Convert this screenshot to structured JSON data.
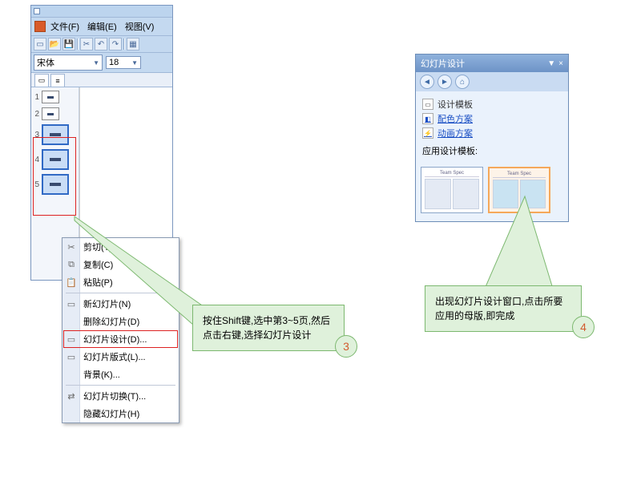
{
  "colors": {
    "accent": "#7a96bf",
    "highlight": "#d22",
    "callout_bg": "#dff1db",
    "callout_border": "#7cb86f",
    "badge_text": "#d25b2e"
  },
  "menu": {
    "file": "文件(F)",
    "edit": "编辑(E)",
    "view": "视图(V)"
  },
  "font": {
    "name": "宋体",
    "size": "18"
  },
  "thumbs": [
    {
      "n": "1"
    },
    {
      "n": "2"
    },
    {
      "n": "3"
    },
    {
      "n": "4"
    },
    {
      "n": "5"
    }
  ],
  "ctx": [
    {
      "icon": "✂",
      "label": "剪切(T)"
    },
    {
      "icon": "⧉",
      "label": "复制(C)"
    },
    {
      "icon": "📋",
      "label": "粘贴(P)"
    },
    {
      "sep": true
    },
    {
      "icon": "▭",
      "label": "新幻灯片(N)"
    },
    {
      "icon": "",
      "label": "删除幻灯片(D)"
    },
    {
      "icon": "▭",
      "label": "幻灯片设计(D)...",
      "hl": true
    },
    {
      "icon": "▭",
      "label": "幻灯片版式(L)..."
    },
    {
      "icon": "",
      "label": "背景(K)..."
    },
    {
      "sep": true
    },
    {
      "icon": "⇄",
      "label": "幻灯片切换(T)..."
    },
    {
      "icon": "",
      "label": "隐藏幻灯片(H)"
    }
  ],
  "callout3": {
    "text": "按住Shift键,选中第3~5页,然后点击右键,选择幻灯片设计",
    "badge": "3"
  },
  "callout4": {
    "text": "出现幻灯片设计窗口,点击所要应用的母版,即完成",
    "badge": "4"
  },
  "pane": {
    "title": "幻灯片设计",
    "links": {
      "templates": "设计模板",
      "colors": "配色方案",
      "anim": "动画方案"
    },
    "apply": "应用设计模板:",
    "tpl_header": "Team Spec"
  }
}
